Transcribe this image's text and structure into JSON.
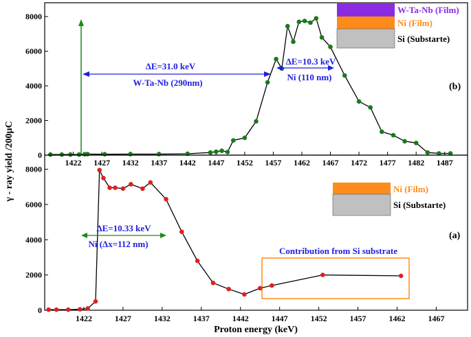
{
  "chart_data": [
    {
      "panel": "(b)",
      "type": "line",
      "xlim": [
        1417,
        1491
      ],
      "ylim": [
        0,
        8800
      ],
      "x_ticks": [
        1422,
        1427,
        1432,
        1437,
        1442,
        1447,
        1452,
        1457,
        1462,
        1467,
        1472,
        1477,
        1482,
        1487
      ],
      "y_ticks": [
        0,
        2000,
        4000,
        6000,
        8000
      ],
      "series": [
        {
          "color": "#1a7a1a",
          "line_color": "#000000",
          "x": [
            1418,
            1420,
            1421.5,
            1423,
            1424,
            1424.5,
            1427.5,
            1432,
            1437,
            1442,
            1446,
            1447,
            1448,
            1449,
            1450,
            1452,
            1454,
            1456,
            1457.5,
            1458.5,
            1459.5,
            1460.5,
            1461.5,
            1462.5,
            1463.5,
            1464.5,
            1465.5,
            1467,
            1469.5,
            1472,
            1474,
            1476,
            1478,
            1480,
            1482,
            1484,
            1486,
            1488
          ],
          "y": [
            30,
            30,
            30,
            30,
            50,
            60,
            50,
            60,
            60,
            80,
            150,
            200,
            250,
            180,
            850,
            1000,
            1950,
            4200,
            5550,
            5000,
            7450,
            6550,
            7700,
            7750,
            7650,
            7900,
            6800,
            6250,
            4600,
            3100,
            2750,
            1350,
            1150,
            800,
            700,
            150,
            100,
            100
          ]
        }
      ],
      "annotations": {
        "delta1": "ΔE=31.0 keV",
        "film1": "W-Ta-Nb (290nm)",
        "delta2": "ΔE=10.3 keV",
        "film2": "Ni (110 nm)"
      },
      "legend": [
        {
          "label": "W-Ta-Nb (Film)",
          "color": "#8a2be2",
          "label_color": "#8a2be2"
        },
        {
          "label": "Ni (Film)",
          "color": "#ff8c1a",
          "label_color": "#ff8c1a"
        },
        {
          "label": "Si (Substarte)",
          "color": "#c0c0c0",
          "label_color": "#000000"
        }
      ]
    },
    {
      "panel": "(a)",
      "type": "line",
      "xlim": [
        1417,
        1471
      ],
      "ylim": [
        0,
        8800
      ],
      "x_ticks": [
        1422,
        1427,
        1432,
        1437,
        1442,
        1447,
        1452,
        1457,
        1462,
        1467
      ],
      "y_ticks": [
        0,
        2000,
        4000,
        6000,
        8000
      ],
      "series": [
        {
          "color": "#e02020",
          "line_color": "#000000",
          "x": [
            1417.5,
            1418.5,
            1420,
            1421.5,
            1422.5,
            1423.5,
            1424,
            1424.5,
            1425.3,
            1426,
            1427,
            1428,
            1429.5,
            1430.5,
            1432.5,
            1434.5,
            1436.5,
            1438.5,
            1440.5,
            1442.5,
            1444.5,
            1446,
            1452.5,
            1462.5
          ],
          "y": [
            30,
            30,
            30,
            50,
            100,
            500,
            7950,
            7500,
            6950,
            6950,
            6900,
            7150,
            6900,
            7250,
            6300,
            4450,
            2800,
            1550,
            1200,
            900,
            1250,
            1400,
            2000,
            1950
          ]
        }
      ],
      "annotations": {
        "delta": "ΔE=10.33 keV",
        "film": "Ni (Δx=112 nm)",
        "box_label": "Contribution from Si substrate"
      },
      "legend": [
        {
          "label": "Ni (Film)",
          "color": "#ff8c1a",
          "label_color": "#ff8c1a"
        },
        {
          "label": "Si (Substarte)",
          "color": "#c0c0c0",
          "label_color": "#000000"
        }
      ]
    }
  ],
  "axes": {
    "xlabel": "Proton energy (keV)",
    "ylabel": "γ - ray yield /200μC"
  }
}
